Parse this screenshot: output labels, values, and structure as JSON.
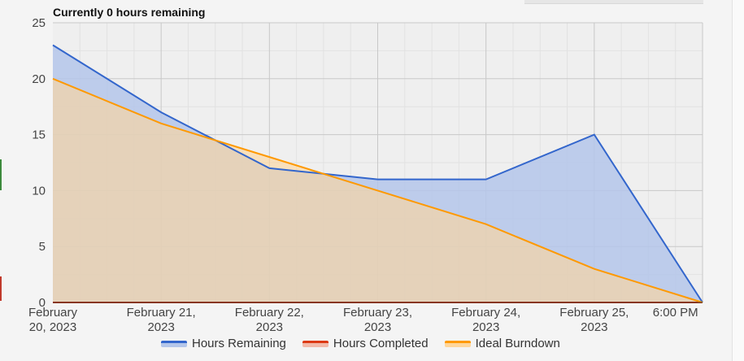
{
  "chart_data": {
    "type": "area",
    "title": "Currently 0 hours remaining",
    "xlabel": "",
    "ylabel": "",
    "ylim": [
      0,
      25
    ],
    "yticks": [
      "0",
      "5",
      "10",
      "15",
      "20",
      "25"
    ],
    "x_tick_labels": [
      [
        "February",
        "20, 2023"
      ],
      [
        "February 21,",
        "2023"
      ],
      [
        "February 22,",
        "2023"
      ],
      [
        "February 23,",
        "2023"
      ],
      [
        "February 24,",
        "2023"
      ],
      [
        "February 25,",
        "2023"
      ],
      [
        "6:00 PM"
      ]
    ],
    "x_tick_positions": [
      0,
      1,
      2,
      3,
      4,
      5,
      5.75
    ],
    "series": [
      {
        "name": "Hours Remaining",
        "color": "#3366cc",
        "fill": "#b4c6ea",
        "points": [
          [
            0,
            23
          ],
          [
            1,
            17
          ],
          [
            2,
            12
          ],
          [
            3,
            11
          ],
          [
            4,
            11
          ],
          [
            5,
            15
          ],
          [
            6,
            0
          ]
        ]
      },
      {
        "name": "Hours Completed",
        "color": "#dc3912",
        "fill": "#f2b9a8",
        "points": [
          [
            0,
            0
          ],
          [
            6,
            0
          ]
        ]
      },
      {
        "name": "Ideal Burndown",
        "color": "#ff9900",
        "fill": "#ffd699",
        "points": [
          [
            0,
            20
          ],
          [
            1,
            16
          ],
          [
            2,
            13
          ],
          [
            3,
            10
          ],
          [
            4,
            7
          ],
          [
            5,
            3
          ],
          [
            6,
            0
          ]
        ]
      }
    ],
    "grid": true,
    "legend_position": "bottom"
  }
}
